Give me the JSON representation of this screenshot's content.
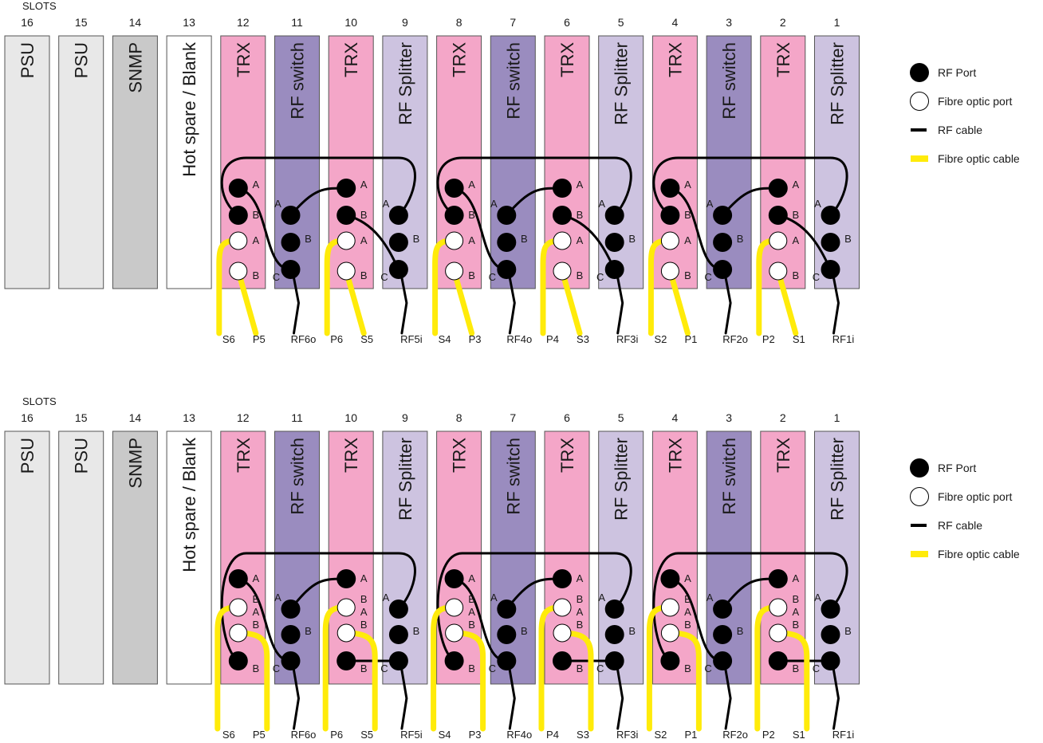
{
  "colors": {
    "psu": "#e8e8e8",
    "snmp": "#c9c9c9",
    "blank": "#ffffff",
    "trx": "#f4a6c8",
    "rf_switch": "#9a8cbf",
    "rf_splitter": "#cdc3e0",
    "rf_cable": "#000000",
    "fibre_cable": "#ffeb0a"
  },
  "slots_heading": "SLOTS",
  "slots": [
    {
      "number": "16",
      "label": "PSU",
      "kind": "psu"
    },
    {
      "number": "15",
      "label": "PSU",
      "kind": "psu"
    },
    {
      "number": "14",
      "label": "SNMP",
      "kind": "snmp"
    },
    {
      "number": "13",
      "label": "Hot spare / Blank",
      "kind": "blank"
    },
    {
      "number": "12",
      "label": "TRX",
      "kind": "trx"
    },
    {
      "number": "11",
      "label": "RF switch",
      "kind": "rf_switch"
    },
    {
      "number": "10",
      "label": "TRX",
      "kind": "trx"
    },
    {
      "number": "9",
      "label": "RF Splitter",
      "kind": "rf_splitter"
    },
    {
      "number": "8",
      "label": "TRX",
      "kind": "trx"
    },
    {
      "number": "7",
      "label": "RF switch",
      "kind": "rf_switch"
    },
    {
      "number": "6",
      "label": "TRX",
      "kind": "trx"
    },
    {
      "number": "5",
      "label": "RF Splitter",
      "kind": "rf_splitter"
    },
    {
      "number": "4",
      "label": "TRX",
      "kind": "trx"
    },
    {
      "number": "3",
      "label": "RF switch",
      "kind": "rf_switch"
    },
    {
      "number": "2",
      "label": "TRX",
      "kind": "trx"
    },
    {
      "number": "1",
      "label": "RF Splitter",
      "kind": "rf_splitter"
    }
  ],
  "bottom_labels": [
    "S6",
    "P5",
    "RF6o",
    "P6",
    "S5",
    "RF5i",
    "S4",
    "P3",
    "RF4o",
    "P4",
    "S3",
    "RF3i",
    "S2",
    "P1",
    "RF2o",
    "P2",
    "S1",
    "RF1i"
  ],
  "legend": [
    {
      "icon": "rf-port-icon",
      "text": "RF Port"
    },
    {
      "icon": "fibre-optic-port-icon",
      "text": "Fibre optic port"
    },
    {
      "icon": "rf-cable-icon",
      "text": "RF cable"
    },
    {
      "icon": "fibre-optic-cable-icon",
      "text": "Fibre optic cable"
    }
  ],
  "port_letters": {
    "a": "A",
    "b": "B",
    "c": "C"
  },
  "diagrams": [
    {
      "id": "top",
      "variant": "v1"
    },
    {
      "id": "bottom",
      "variant": "v2"
    }
  ]
}
